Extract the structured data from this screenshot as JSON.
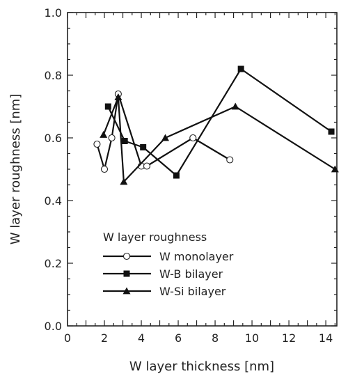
{
  "chart_data": {
    "type": "line",
    "xlabel": "W layer thickness [nm]",
    "ylabel": "W layer roughness [nm]",
    "xlim": [
      0,
      14.6
    ],
    "ylim": [
      0,
      1.0
    ],
    "x_ticks": [
      "0",
      "2",
      "4",
      "6",
      "8",
      "10",
      "12",
      "14"
    ],
    "y_ticks": [
      "0.0",
      "0.2",
      "0.4",
      "0.6",
      "0.8",
      "1.0"
    ],
    "legend_title": "W layer roughness",
    "legend_position": "lower-left",
    "series": [
      {
        "name": "W monolayer",
        "marker": "open-circle",
        "points": [
          [
            1.6,
            0.58
          ],
          [
            2.0,
            0.5
          ],
          [
            2.4,
            0.6
          ],
          [
            2.75,
            0.74
          ],
          [
            4.0,
            0.51
          ],
          [
            4.3,
            0.51
          ],
          [
            6.8,
            0.6
          ],
          [
            8.8,
            0.53
          ]
        ]
      },
      {
        "name": "W-B bilayer",
        "marker": "filled-square",
        "points": [
          [
            2.2,
            0.7
          ],
          [
            3.1,
            0.59
          ],
          [
            4.1,
            0.57
          ],
          [
            5.9,
            0.48
          ],
          [
            9.4,
            0.82
          ],
          [
            14.3,
            0.62
          ]
        ]
      },
      {
        "name": "W-Si bilayer",
        "marker": "filled-triangle",
        "points": [
          [
            1.95,
            0.61
          ],
          [
            2.75,
            0.73
          ],
          [
            3.05,
            0.46
          ],
          [
            5.3,
            0.6
          ],
          [
            9.1,
            0.7
          ],
          [
            14.5,
            0.5
          ]
        ]
      }
    ]
  }
}
